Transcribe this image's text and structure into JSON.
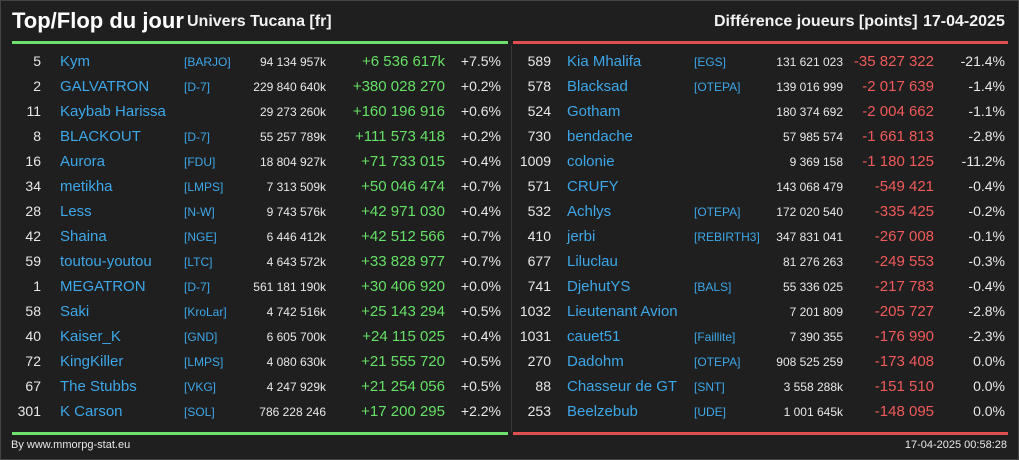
{
  "header": {
    "title": "Top/Flop du jour",
    "univers": "Univers Tucana [fr]",
    "metric": "Différence joueurs [points]",
    "date": "17-04-2025"
  },
  "colors": {
    "top": "#6ee06e",
    "flop": "#e05050",
    "link": "#3da7e8"
  },
  "top": [
    {
      "rank": "5",
      "name": "Kym",
      "guild": "[BARJO]",
      "total": "94 134 957k",
      "diff": "+6 536 617k",
      "pct": "+7.5%"
    },
    {
      "rank": "2",
      "name": "GALVATRON",
      "guild": "[D-7]",
      "total": "229 840 640k",
      "diff": "+380 028 270",
      "pct": "+0.2%"
    },
    {
      "rank": "11",
      "name": "Kaybab Harissa",
      "guild": "",
      "total": "29 273 260k",
      "diff": "+160 196 916",
      "pct": "+0.6%"
    },
    {
      "rank": "8",
      "name": "BLACKOUT",
      "guild": "[D-7]",
      "total": "55 257 789k",
      "diff": "+111 573 418",
      "pct": "+0.2%"
    },
    {
      "rank": "16",
      "name": "Aurora",
      "guild": "[FDU]",
      "total": "18 804 927k",
      "diff": "+71 733 015",
      "pct": "+0.4%"
    },
    {
      "rank": "34",
      "name": "metikha",
      "guild": "[LMPS]",
      "total": "7 313 509k",
      "diff": "+50 046 474",
      "pct": "+0.7%"
    },
    {
      "rank": "28",
      "name": "Less",
      "guild": "[N-W]",
      "total": "9 743 576k",
      "diff": "+42 971 030",
      "pct": "+0.4%"
    },
    {
      "rank": "42",
      "name": "Shaina",
      "guild": "[NGE]",
      "total": "6 446 412k",
      "diff": "+42 512 566",
      "pct": "+0.7%"
    },
    {
      "rank": "59",
      "name": "toutou-youtou",
      "guild": "[LTC]",
      "total": "4 643 572k",
      "diff": "+33 828 977",
      "pct": "+0.7%"
    },
    {
      "rank": "1",
      "name": "MEGATRON",
      "guild": "[D-7]",
      "total": "561 181 190k",
      "diff": "+30 406 920",
      "pct": "+0.0%"
    },
    {
      "rank": "58",
      "name": "Saki",
      "guild": "[KroLar]",
      "total": "4 742 516k",
      "diff": "+25 143 294",
      "pct": "+0.5%"
    },
    {
      "rank": "40",
      "name": "Kaiser_K",
      "guild": "[GND]",
      "total": "6 605 700k",
      "diff": "+24 115 025",
      "pct": "+0.4%"
    },
    {
      "rank": "72",
      "name": "KingKiller",
      "guild": "[LMPS]",
      "total": "4 080 630k",
      "diff": "+21 555 720",
      "pct": "+0.5%"
    },
    {
      "rank": "67",
      "name": "The Stubbs",
      "guild": "[VKG]",
      "total": "4 247 929k",
      "diff": "+21 254 056",
      "pct": "+0.5%"
    },
    {
      "rank": "301",
      "name": "K Carson",
      "guild": "[SOL]",
      "total": "786 228 246",
      "diff": "+17 200 295",
      "pct": "+2.2%"
    }
  ],
  "flop": [
    {
      "rank": "589",
      "name": "Kia Mhalifa",
      "guild": "[EGS]",
      "total": "131 621 023",
      "diff": "-35 827 322",
      "pct": "-21.4%"
    },
    {
      "rank": "578",
      "name": "Blacksad",
      "guild": "[OTEPA]",
      "total": "139 016 999",
      "diff": "-2 017 639",
      "pct": "-1.4%"
    },
    {
      "rank": "524",
      "name": "Gotham",
      "guild": "",
      "total": "180 374 692",
      "diff": "-2 004 662",
      "pct": "-1.1%"
    },
    {
      "rank": "730",
      "name": "bendache",
      "guild": "",
      "total": "57 985 574",
      "diff": "-1 661 813",
      "pct": "-2.8%"
    },
    {
      "rank": "1009",
      "name": "colonie",
      "guild": "",
      "total": "9 369 158",
      "diff": "-1 180 125",
      "pct": "-11.2%"
    },
    {
      "rank": "571",
      "name": "CRUFY",
      "guild": "",
      "total": "143 068 479",
      "diff": "-549 421",
      "pct": "-0.4%"
    },
    {
      "rank": "532",
      "name": "Achlys",
      "guild": "[OTEPA]",
      "total": "172 020 540",
      "diff": "-335 425",
      "pct": "-0.2%"
    },
    {
      "rank": "410",
      "name": "jerbi",
      "guild": "[REBIRTH3]",
      "total": "347 831 041",
      "diff": "-267 008",
      "pct": "-0.1%"
    },
    {
      "rank": "677",
      "name": "Liluclau",
      "guild": "",
      "total": "81 276 263",
      "diff": "-249 553",
      "pct": "-0.3%"
    },
    {
      "rank": "741",
      "name": "DjehutYS",
      "guild": "[BALS]",
      "total": "55 336 025",
      "diff": "-217 783",
      "pct": "-0.4%"
    },
    {
      "rank": "1032",
      "name": "Lieutenant Avion",
      "guild": "",
      "total": "7 201 809",
      "diff": "-205 727",
      "pct": "-2.8%"
    },
    {
      "rank": "1031",
      "name": "cauet51",
      "guild": "[Faillite]",
      "total": "7 390 355",
      "diff": "-176 990",
      "pct": "-2.3%"
    },
    {
      "rank": "270",
      "name": "Dadohm",
      "guild": "[OTEPA]",
      "total": "908 525 259",
      "diff": "-173 408",
      "pct": "0.0%"
    },
    {
      "rank": "88",
      "name": "Chasseur de GT",
      "guild": "[SNT]",
      "total": "3 558 288k",
      "diff": "-151 510",
      "pct": "0.0%"
    },
    {
      "rank": "253",
      "name": "Beelzebub",
      "guild": "[UDE]",
      "total": "1 001 645k",
      "diff": "-148 095",
      "pct": "0.0%"
    }
  ],
  "footer": {
    "left": "By www.mmorpg-stat.eu",
    "right": "17-04-2025 00:58:28"
  }
}
